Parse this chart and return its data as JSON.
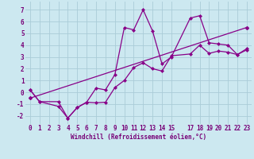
{
  "xlabel": "Windchill (Refroidissement éolien,°C)",
  "background_color": "#cce8f0",
  "grid_color": "#aaccd8",
  "line_color": "#880088",
  "xlim": [
    -0.5,
    23.5
  ],
  "ylim": [
    -2.7,
    7.7
  ],
  "xticks": [
    0,
    1,
    2,
    3,
    4,
    5,
    6,
    7,
    8,
    9,
    10,
    11,
    12,
    13,
    14,
    15,
    17,
    18,
    19,
    20,
    21,
    22,
    23
  ],
  "yticks": [
    -2,
    -1,
    0,
    1,
    2,
    3,
    4,
    5,
    6,
    7
  ],
  "series1_x": [
    0,
    1,
    3,
    4,
    5,
    6,
    7,
    8,
    9,
    10,
    11,
    12,
    13,
    14,
    15,
    17,
    18,
    19,
    20,
    21,
    22,
    23
  ],
  "series1_y": [
    0.2,
    -0.8,
    -0.8,
    -2.2,
    -1.3,
    -0.85,
    0.35,
    0.2,
    1.5,
    5.5,
    5.3,
    7.0,
    5.2,
    2.4,
    3.0,
    6.3,
    6.5,
    4.2,
    4.1,
    4.0,
    3.2,
    3.6
  ],
  "series2_x": [
    0,
    1,
    3,
    4,
    5,
    6,
    7,
    8,
    9,
    10,
    11,
    12,
    13,
    14,
    15,
    17,
    18,
    19,
    20,
    21,
    22,
    23
  ],
  "series2_y": [
    0.2,
    -0.8,
    -1.2,
    -2.2,
    -1.3,
    -0.85,
    -0.9,
    -0.85,
    0.4,
    1.0,
    2.1,
    2.5,
    2.0,
    1.8,
    3.1,
    3.25,
    4.0,
    3.3,
    3.5,
    3.4,
    3.2,
    3.7
  ],
  "series3_x": [
    0,
    23
  ],
  "series3_y": [
    -0.5,
    5.5
  ],
  "tick_fontsize": 5.5,
  "xlabel_fontsize": 5.5
}
